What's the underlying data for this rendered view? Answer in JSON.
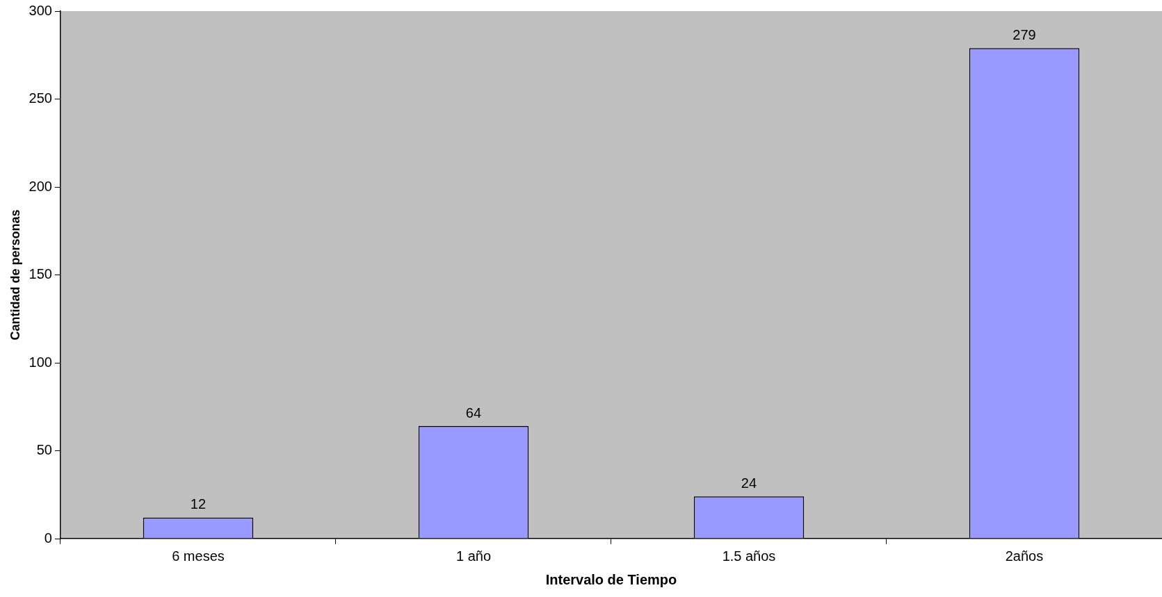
{
  "chart_data": {
    "type": "bar",
    "xlabel": "Intervalo de Tiempo",
    "ylabel": "Cantidad de personas",
    "categories": [
      "6 meses",
      "1 año",
      "1.5 años",
      "2años"
    ],
    "values": [
      12,
      64,
      24,
      279
    ],
    "color": "#9999ff",
    "ylim": [
      0,
      300
    ],
    "yticks": [
      0,
      50,
      100,
      150,
      200,
      250,
      300
    ],
    "grid": false,
    "legend": false,
    "data_labels": true
  }
}
